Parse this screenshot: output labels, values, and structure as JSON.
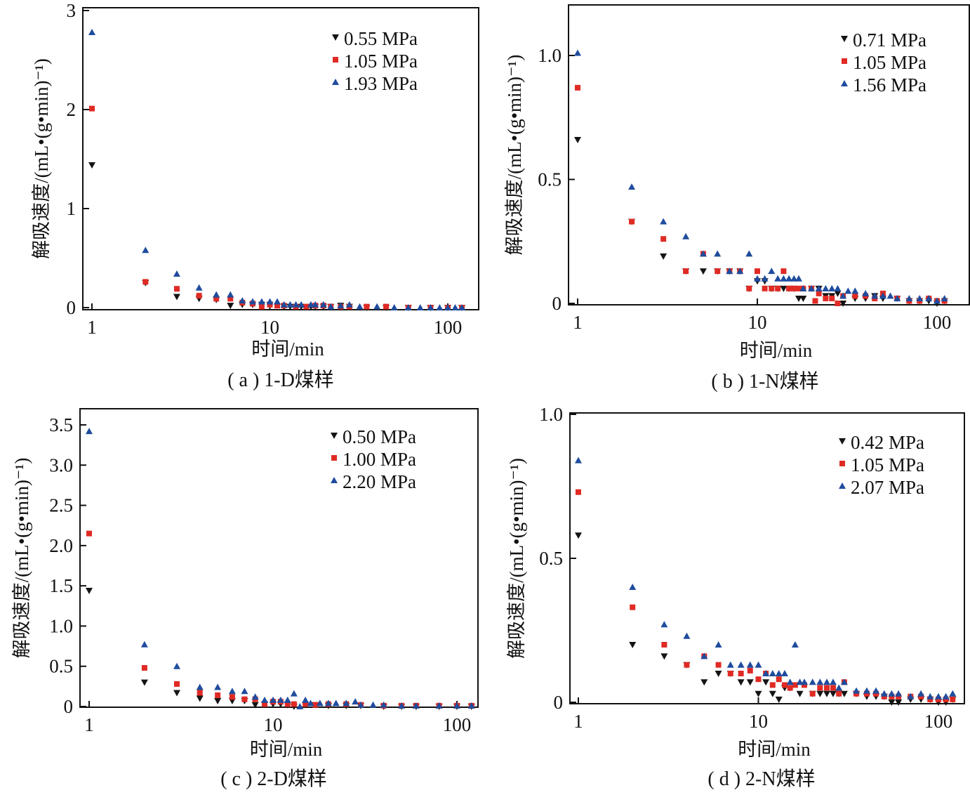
{
  "colors": {
    "series1": "#141414",
    "series2": "#e02a24",
    "series3": "#1f4c9e",
    "axis": "#111111"
  },
  "chart_data": [
    {
      "type": "scatter",
      "panel": "a",
      "title": "( a ) 1-D煤样",
      "xlabel": "时间/min",
      "ylabel": "解吸速度/(mL•(g•min)⁻¹)",
      "xscale": "log",
      "xlim": [
        0.95,
        130
      ],
      "ylim": [
        0,
        3.05
      ],
      "xticks": [
        1,
        10,
        100
      ],
      "xtick_labels": [
        "1",
        "10",
        "100"
      ],
      "yticks": [
        0,
        1,
        2,
        3
      ],
      "ytick_labels": [
        "0",
        "1",
        "2",
        "3"
      ],
      "legend_position": "top-right",
      "series": [
        {
          "name": "0.55 MPa",
          "marker": "triangle-down",
          "x": [
            1,
            2,
            3,
            4,
            5,
            6,
            7,
            8,
            9,
            10,
            12,
            13,
            15,
            17,
            18,
            20,
            22,
            25,
            28,
            35,
            45,
            60,
            80,
            100,
            120
          ],
          "y": [
            1.44,
            0.25,
            0.11,
            0.09,
            0.08,
            0.02,
            0.03,
            0.03,
            0.03,
            0.03,
            0.01,
            0.01,
            0.01,
            0.01,
            0.01,
            0.01,
            0.01,
            0.02,
            0.01,
            0.0,
            0.0,
            0.0,
            0.0,
            0.0,
            0.0
          ]
        },
        {
          "name": "1.05 MPa",
          "marker": "square",
          "x": [
            1,
            2,
            3,
            4,
            5,
            6,
            7,
            8,
            9,
            10,
            11,
            12,
            14,
            16,
            18,
            20,
            22,
            25,
            28,
            35,
            45,
            60,
            80,
            100,
            120
          ],
          "y": [
            2.01,
            0.26,
            0.19,
            0.12,
            0.09,
            0.09,
            0.05,
            0.04,
            0.01,
            0.03,
            0.02,
            0.02,
            0.01,
            0.01,
            0.02,
            0.02,
            0.01,
            0.01,
            0.01,
            0.01,
            0.01,
            0.0,
            0.0,
            0.0,
            0.0
          ]
        },
        {
          "name": "1.93 MPa",
          "marker": "triangle-up",
          "x": [
            1,
            2,
            3,
            4,
            5,
            6,
            7,
            8,
            9,
            10,
            11,
            12,
            13,
            14,
            15,
            17,
            18,
            20,
            22,
            25,
            28,
            32,
            40,
            50,
            60,
            70,
            80,
            90,
            100,
            110,
            120
          ],
          "y": [
            2.78,
            0.58,
            0.34,
            0.2,
            0.13,
            0.13,
            0.07,
            0.06,
            0.06,
            0.06,
            0.06,
            0.03,
            0.03,
            0.03,
            0.03,
            0.03,
            0.03,
            0.03,
            0.01,
            0.02,
            0.03,
            0.01,
            0.01,
            0.0,
            0.0,
            0.0,
            0.0,
            0.0,
            0.0,
            0.0,
            0.0
          ]
        }
      ]
    },
    {
      "type": "scatter",
      "panel": "b",
      "title": "( b ) 1-N煤样",
      "xlabel": "时间/min",
      "ylabel": "解吸速度/(mL•(g•min)⁻¹)",
      "xscale": "log",
      "xlim": [
        0.95,
        120
      ],
      "ylim": [
        0,
        1.2
      ],
      "xticks": [
        1,
        10,
        100
      ],
      "xtick_labels": [
        "1",
        "10",
        "100"
      ],
      "yticks": [
        0,
        0.5,
        1.0
      ],
      "ytick_labels": [
        "0",
        "0.5",
        "1.0"
      ],
      "legend_position": "top-right",
      "series": [
        {
          "name": "0.71 MPa",
          "marker": "triangle-down",
          "x": [
            1,
            2,
            3,
            4,
            5,
            6,
            7,
            8,
            9,
            10,
            11,
            12,
            13,
            14,
            15,
            16,
            17,
            18,
            20,
            22,
            24,
            26,
            28,
            30,
            35,
            40,
            45,
            50,
            60,
            70,
            80,
            90,
            100,
            110
          ],
          "y": [
            0.66,
            0.33,
            0.19,
            0.13,
            0.13,
            0.13,
            0.13,
            0.13,
            0.06,
            0.09,
            0.09,
            0.06,
            0.06,
            0.06,
            0.06,
            0.06,
            0.02,
            0.02,
            0.06,
            0.06,
            0.03,
            0.03,
            0.04,
            0.0,
            0.02,
            0.02,
            0.03,
            0.02,
            0.02,
            0.01,
            0.01,
            0.01,
            0.0,
            0.01
          ]
        },
        {
          "name": "1.05 MPa",
          "marker": "square",
          "x": [
            1,
            2,
            3,
            4,
            5,
            6,
            7,
            8,
            9,
            10,
            11,
            12,
            13,
            14,
            15,
            16,
            17,
            18,
            20,
            21,
            22,
            24,
            26,
            28,
            30,
            35,
            40,
            45,
            50,
            60,
            70,
            80,
            90,
            100,
            110
          ],
          "y": [
            0.87,
            0.33,
            0.26,
            0.13,
            0.2,
            0.13,
            0.13,
            0.13,
            0.06,
            0.13,
            0.06,
            0.06,
            0.06,
            0.13,
            0.06,
            0.06,
            0.06,
            0.06,
            0.06,
            0.01,
            0.04,
            0.02,
            0.02,
            0.0,
            0.03,
            0.03,
            0.03,
            0.02,
            0.04,
            0.02,
            0.01,
            0.01,
            0.02,
            0.01,
            0.01
          ]
        },
        {
          "name": "1.56 MPa",
          "marker": "triangle-up",
          "x": [
            1,
            2,
            3,
            4,
            5,
            6,
            7,
            8,
            9,
            10,
            11,
            12,
            13,
            14,
            15,
            16,
            17,
            18,
            20,
            22,
            24,
            26,
            28,
            30,
            32,
            35,
            40,
            45,
            50,
            55,
            60,
            70,
            80,
            90,
            100,
            110
          ],
          "y": [
            1.01,
            0.47,
            0.33,
            0.27,
            0.2,
            0.2,
            0.13,
            0.13,
            0.2,
            0.1,
            0.1,
            0.13,
            0.1,
            0.1,
            0.1,
            0.1,
            0.1,
            0.06,
            0.06,
            0.06,
            0.06,
            0.06,
            0.06,
            0.03,
            0.05,
            0.05,
            0.04,
            0.03,
            0.03,
            0.03,
            0.02,
            0.02,
            0.02,
            0.02,
            0.01,
            0.02
          ]
        }
      ]
    },
    {
      "type": "scatter",
      "panel": "c",
      "title": "( c ) 2-D煤样",
      "xlabel": "时间/min",
      "ylabel": "解吸速度/(mL•(g•min)⁻¹)",
      "xscale": "log",
      "xlim": [
        0.95,
        125
      ],
      "ylim": [
        0,
        3.7
      ],
      "xticks": [
        1,
        10,
        100
      ],
      "xtick_labels": [
        "1",
        "10",
        "100"
      ],
      "yticks": [
        0,
        0.5,
        1.0,
        1.5,
        2.0,
        2.5,
        3.0,
        3.5
      ],
      "ytick_labels": [
        "0",
        "0.5",
        "1.0",
        "1.5",
        "2.0",
        "2.5",
        "3.0",
        "3.5"
      ],
      "legend_position": "top-right",
      "series": [
        {
          "name": "0.50 MPa",
          "marker": "triangle-down",
          "x": [
            1,
            2,
            3,
            4,
            5,
            6,
            7,
            8,
            9,
            10,
            11,
            12,
            13,
            15,
            17,
            20,
            25,
            30,
            40,
            50,
            60,
            80,
            100,
            120
          ],
          "y": [
            1.44,
            0.3,
            0.17,
            0.1,
            0.07,
            0.07,
            0.07,
            0.02,
            0.03,
            0.03,
            0.03,
            0.02,
            0.0,
            0.02,
            0.02,
            0.01,
            0.01,
            0.01,
            0.0,
            0.0,
            0.0,
            0.0,
            0.0,
            0.0
          ]
        },
        {
          "name": "1.00 MPa",
          "marker": "square",
          "x": [
            1,
            2,
            3,
            4,
            5,
            6,
            7,
            8,
            9,
            10,
            11,
            12,
            13,
            15,
            17,
            20,
            25,
            30,
            40,
            50,
            60,
            80,
            100,
            120
          ],
          "y": [
            2.15,
            0.48,
            0.28,
            0.17,
            0.14,
            0.12,
            0.09,
            0.09,
            0.03,
            0.06,
            0.06,
            0.03,
            0.03,
            0.03,
            0.02,
            0.03,
            0.03,
            0.02,
            0.01,
            0.01,
            0.01,
            0.01,
            0.01,
            0.01
          ]
        },
        {
          "name": "2.20 MPa",
          "marker": "triangle-up",
          "x": [
            1,
            2,
            3,
            4,
            5,
            6,
            7,
            8,
            9,
            10,
            11,
            12,
            13,
            14,
            15,
            16,
            18,
            20,
            22,
            25,
            28,
            30,
            35,
            40,
            50,
            60,
            80,
            100,
            120
          ],
          "y": [
            3.42,
            0.77,
            0.5,
            0.24,
            0.24,
            0.19,
            0.19,
            0.12,
            0.08,
            0.08,
            0.08,
            0.08,
            0.16,
            0.0,
            0.08,
            0.04,
            0.04,
            0.04,
            0.04,
            0.04,
            0.06,
            0.02,
            0.02,
            0.02,
            0.01,
            0.01,
            0.01,
            0.01,
            0.01
          ]
        }
      ]
    },
    {
      "type": "scatter",
      "panel": "d",
      "title": "( d ) 2-N煤样",
      "xlabel": "时间/min",
      "ylabel": "解吸速度/(mL•(g•min)⁻¹)",
      "xscale": "log",
      "xlim": [
        0.95,
        125
      ],
      "ylim": [
        0,
        1.0
      ],
      "xticks": [
        1,
        10,
        100
      ],
      "xtick_labels": [
        "1",
        "10",
        "100"
      ],
      "yticks": [
        0,
        0.5,
        1.0
      ],
      "ytick_labels": [
        "0",
        "0.5",
        "1.0"
      ],
      "legend_position": "top-right",
      "series": [
        {
          "name": "0.42 MPa",
          "marker": "triangle-down",
          "x": [
            1,
            2,
            3,
            4,
            5,
            6,
            7,
            8,
            9,
            10,
            11,
            12,
            13,
            14,
            15,
            17,
            20,
            22,
            24,
            26,
            28,
            30,
            35,
            40,
            45,
            50,
            55,
            60,
            70,
            80,
            90,
            100,
            110,
            120
          ],
          "y": [
            0.58,
            0.2,
            0.16,
            0.13,
            0.07,
            0.1,
            0.1,
            0.07,
            0.07,
            0.03,
            0.07,
            0.03,
            0.01,
            0.05,
            0.05,
            0.03,
            0.03,
            0.03,
            0.03,
            0.03,
            0.03,
            0.03,
            0.03,
            0.02,
            0.02,
            0.02,
            0.0,
            0.0,
            0.01,
            0.01,
            0.01,
            0.0,
            0.0,
            0.01
          ]
        },
        {
          "name": "1.05 MPa",
          "marker": "square",
          "x": [
            1,
            2,
            3,
            4,
            5,
            6,
            7,
            8,
            9,
            10,
            11,
            12,
            13,
            14,
            15,
            16,
            18,
            20,
            22,
            24,
            26,
            28,
            30,
            35,
            40,
            45,
            50,
            55,
            60,
            70,
            80,
            90,
            100,
            110,
            120
          ],
          "y": [
            0.73,
            0.33,
            0.2,
            0.13,
            0.16,
            0.13,
            0.1,
            0.1,
            0.11,
            0.08,
            0.1,
            0.06,
            0.08,
            0.06,
            0.05,
            0.06,
            0.06,
            0.03,
            0.05,
            0.05,
            0.05,
            0.03,
            0.07,
            0.03,
            0.03,
            0.03,
            0.02,
            0.02,
            0.02,
            0.02,
            0.02,
            0.01,
            0.01,
            0.01,
            0.01
          ]
        },
        {
          "name": "2.07 MPa",
          "marker": "triangle-up",
          "x": [
            1,
            2,
            3,
            4,
            5,
            6,
            7,
            8,
            9,
            10,
            11,
            12,
            13,
            14,
            15,
            16,
            17,
            18,
            20,
            22,
            24,
            26,
            28,
            30,
            35,
            40,
            45,
            50,
            55,
            60,
            70,
            80,
            90,
            100,
            110,
            120
          ],
          "y": [
            0.84,
            0.4,
            0.27,
            0.23,
            0.16,
            0.2,
            0.13,
            0.13,
            0.13,
            0.13,
            0.1,
            0.1,
            0.1,
            0.1,
            0.07,
            0.2,
            0.07,
            0.07,
            0.07,
            0.07,
            0.07,
            0.07,
            0.05,
            0.07,
            0.04,
            0.04,
            0.04,
            0.03,
            0.03,
            0.03,
            0.02,
            0.03,
            0.02,
            0.02,
            0.02,
            0.03
          ]
        }
      ]
    }
  ]
}
